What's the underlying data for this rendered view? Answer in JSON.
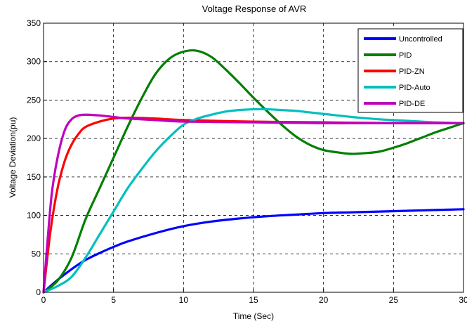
{
  "chart_data": {
    "type": "line",
    "title": "Voltage Response of AVR",
    "xlabel": "Time (Sec)",
    "ylabel": "Voltage Deviation(pu)",
    "xlim": [
      0,
      30
    ],
    "ylim": [
      0,
      350
    ],
    "xticks": [
      0,
      5,
      10,
      15,
      20,
      25,
      30
    ],
    "yticks": [
      0,
      50,
      100,
      150,
      200,
      250,
      300,
      350
    ],
    "xtick_labels": [
      "0",
      "5",
      "10",
      "15",
      "20",
      "25",
      "30"
    ],
    "ytick_labels": [
      "0",
      "50",
      "100",
      "150",
      "200",
      "250",
      "300",
      "350"
    ],
    "grid": true,
    "legend_position": "top-right",
    "series": [
      {
        "name": "Uncontrolled",
        "color": "#0000ff",
        "x": [
          0,
          1,
          2,
          3,
          4,
          5,
          6,
          8,
          10,
          12,
          14,
          16,
          18,
          20,
          22,
          24,
          26,
          28,
          30
        ],
        "y": [
          0,
          16,
          30,
          42,
          51,
          59,
          66,
          77,
          86,
          92,
          96,
          99,
          101,
          103,
          104,
          105,
          106,
          107,
          108
        ]
      },
      {
        "name": "PID",
        "color": "#007f00",
        "x": [
          0,
          1,
          2,
          3,
          4,
          5,
          6,
          7,
          8,
          9,
          10,
          11,
          12,
          13,
          14,
          15,
          16,
          17,
          18,
          19,
          20,
          21,
          22,
          23,
          24,
          25,
          26,
          27,
          28,
          29,
          30
        ],
        "y": [
          0,
          15,
          45,
          95,
          135,
          175,
          215,
          252,
          284,
          304,
          313,
          314,
          306,
          290,
          272,
          253,
          235,
          218,
          203,
          192,
          185,
          182,
          180,
          181,
          183,
          188,
          194,
          201,
          208,
          214,
          220
        ]
      },
      {
        "name": "PID-ZN",
        "color": "#ff0000",
        "x": [
          0,
          0.5,
          1,
          1.5,
          2,
          2.5,
          3,
          4,
          5,
          6,
          8,
          10,
          15,
          20,
          25,
          30
        ],
        "y": [
          0,
          80,
          135,
          170,
          192,
          206,
          215,
          222,
          226,
          227,
          226,
          224,
          222,
          221,
          220,
          220
        ]
      },
      {
        "name": "PID-Auto",
        "color": "#00bfbf",
        "x": [
          0,
          1,
          2,
          3,
          4,
          5,
          6,
          7,
          8,
          9,
          10,
          11,
          12,
          13,
          14,
          15,
          16,
          17,
          18,
          19,
          20,
          22,
          24,
          26,
          28,
          30
        ],
        "y": [
          0,
          8,
          20,
          45,
          75,
          105,
          135,
          160,
          183,
          202,
          218,
          226,
          231,
          235,
          237,
          238,
          238,
          237,
          236,
          234,
          232,
          228,
          225,
          223,
          221,
          220
        ]
      },
      {
        "name": "PID-DE",
        "color": "#bf00bf",
        "x": [
          0,
          0.3,
          0.6,
          1,
          1.5,
          2,
          2.5,
          3,
          4,
          5,
          6,
          8,
          10,
          15,
          20,
          25,
          30
        ],
        "y": [
          0,
          70,
          130,
          175,
          210,
          225,
          230,
          231,
          230,
          228,
          226,
          224,
          222,
          221,
          220,
          220,
          220
        ]
      }
    ]
  }
}
